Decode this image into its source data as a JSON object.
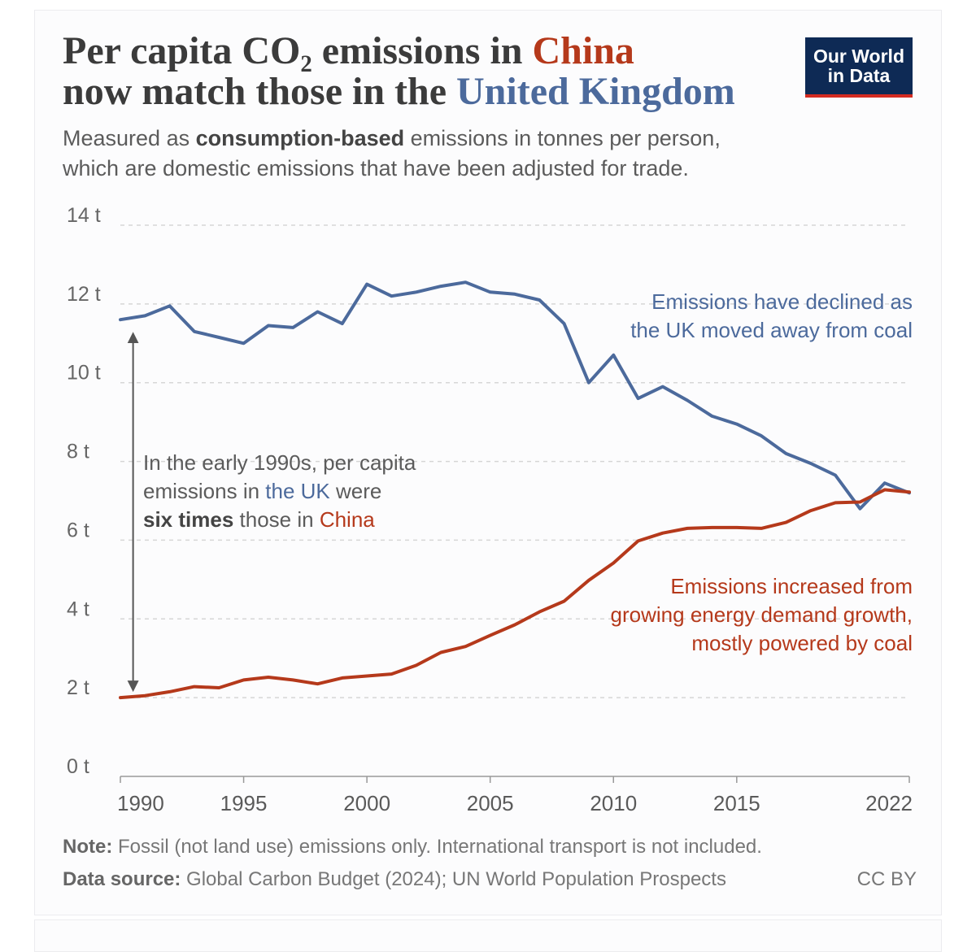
{
  "header": {
    "title_part1": "Per capita CO₂ emissions in ",
    "title_china": "China",
    "title_part2": "now match those in the ",
    "title_uk": "United Kingdom",
    "subtitle_a": "Measured as ",
    "subtitle_bold": "consumption-based",
    "subtitle_b": " emissions in tonnes per person,",
    "subtitle_line2": "which are domestic emissions that have been adjusted for trade.",
    "logo_line1": "Our World",
    "logo_line2": "in Data"
  },
  "colors": {
    "uk": "#4c6a9c",
    "china": "#b5391b",
    "text": "#5b5b5b",
    "logo_bg": "#0e2a55",
    "logo_accent": "#d42b21"
  },
  "chart_data": {
    "type": "line",
    "title": "Per capita CO₂ emissions in China now match those in the United Kingdom",
    "ylabel": "tonnes per person",
    "xlabel": "",
    "xlim": [
      1990,
      2022
    ],
    "ylim": [
      0,
      14
    ],
    "y_ticks": [
      0,
      2,
      4,
      6,
      8,
      10,
      12,
      14
    ],
    "y_tick_labels": [
      "0 t",
      "2 t",
      "4 t",
      "6 t",
      "8 t",
      "10 t",
      "12 t",
      "14 t"
    ],
    "x_ticks": [
      1990,
      1995,
      2000,
      2005,
      2010,
      2015,
      2022
    ],
    "x_tick_labels": [
      "1990",
      "1995",
      "2000",
      "2005",
      "2010",
      "2015",
      "2022"
    ],
    "grid": true,
    "x": [
      1990,
      1991,
      1992,
      1993,
      1994,
      1995,
      1996,
      1997,
      1998,
      1999,
      2000,
      2001,
      2002,
      2003,
      2004,
      2005,
      2006,
      2007,
      2008,
      2009,
      2010,
      2011,
      2012,
      2013,
      2014,
      2015,
      2016,
      2017,
      2018,
      2019,
      2020,
      2021,
      2022
    ],
    "series": [
      {
        "name": "United Kingdom",
        "color": "#4c6a9c",
        "values": [
          11.6,
          11.7,
          11.95,
          11.3,
          11.15,
          11.0,
          11.45,
          11.4,
          11.8,
          11.5,
          12.5,
          12.2,
          12.3,
          12.45,
          12.55,
          12.3,
          12.25,
          12.1,
          11.5,
          10.0,
          10.7,
          9.6,
          9.9,
          9.55,
          9.15,
          8.95,
          8.65,
          8.2,
          7.95,
          7.65,
          6.8,
          7.45,
          7.2
        ]
      },
      {
        "name": "China",
        "color": "#b5391b",
        "values": [
          2.0,
          2.05,
          2.15,
          2.28,
          2.25,
          2.45,
          2.52,
          2.45,
          2.35,
          2.5,
          2.55,
          2.6,
          2.82,
          3.15,
          3.3,
          3.58,
          3.85,
          4.18,
          4.45,
          4.98,
          5.42,
          5.98,
          6.18,
          6.3,
          6.32,
          6.32,
          6.3,
          6.45,
          6.75,
          6.95,
          6.97,
          7.28,
          7.22
        ]
      }
    ],
    "annotations": {
      "uk_line1": "Emissions have declined as",
      "uk_line2": "the UK moved away from coal",
      "china_line1": "Emissions increased from",
      "china_line2": "growing energy demand growth,",
      "china_line3": "mostly powered by coal",
      "mid_a": "In the early 1990s, per capita",
      "mid_b1": "emissions in ",
      "mid_b2": "the UK",
      "mid_b3": " were",
      "mid_c1": "six times",
      "mid_c2": " those in ",
      "mid_c3": "China"
    }
  },
  "footer": {
    "note_label": "Note:",
    "note_text": " Fossil (not land use) emissions only. International transport is not included.",
    "source_label": "Data source:",
    "source_text": " Global Carbon Budget (2024); UN World Population Prospects",
    "license": "CC BY"
  }
}
